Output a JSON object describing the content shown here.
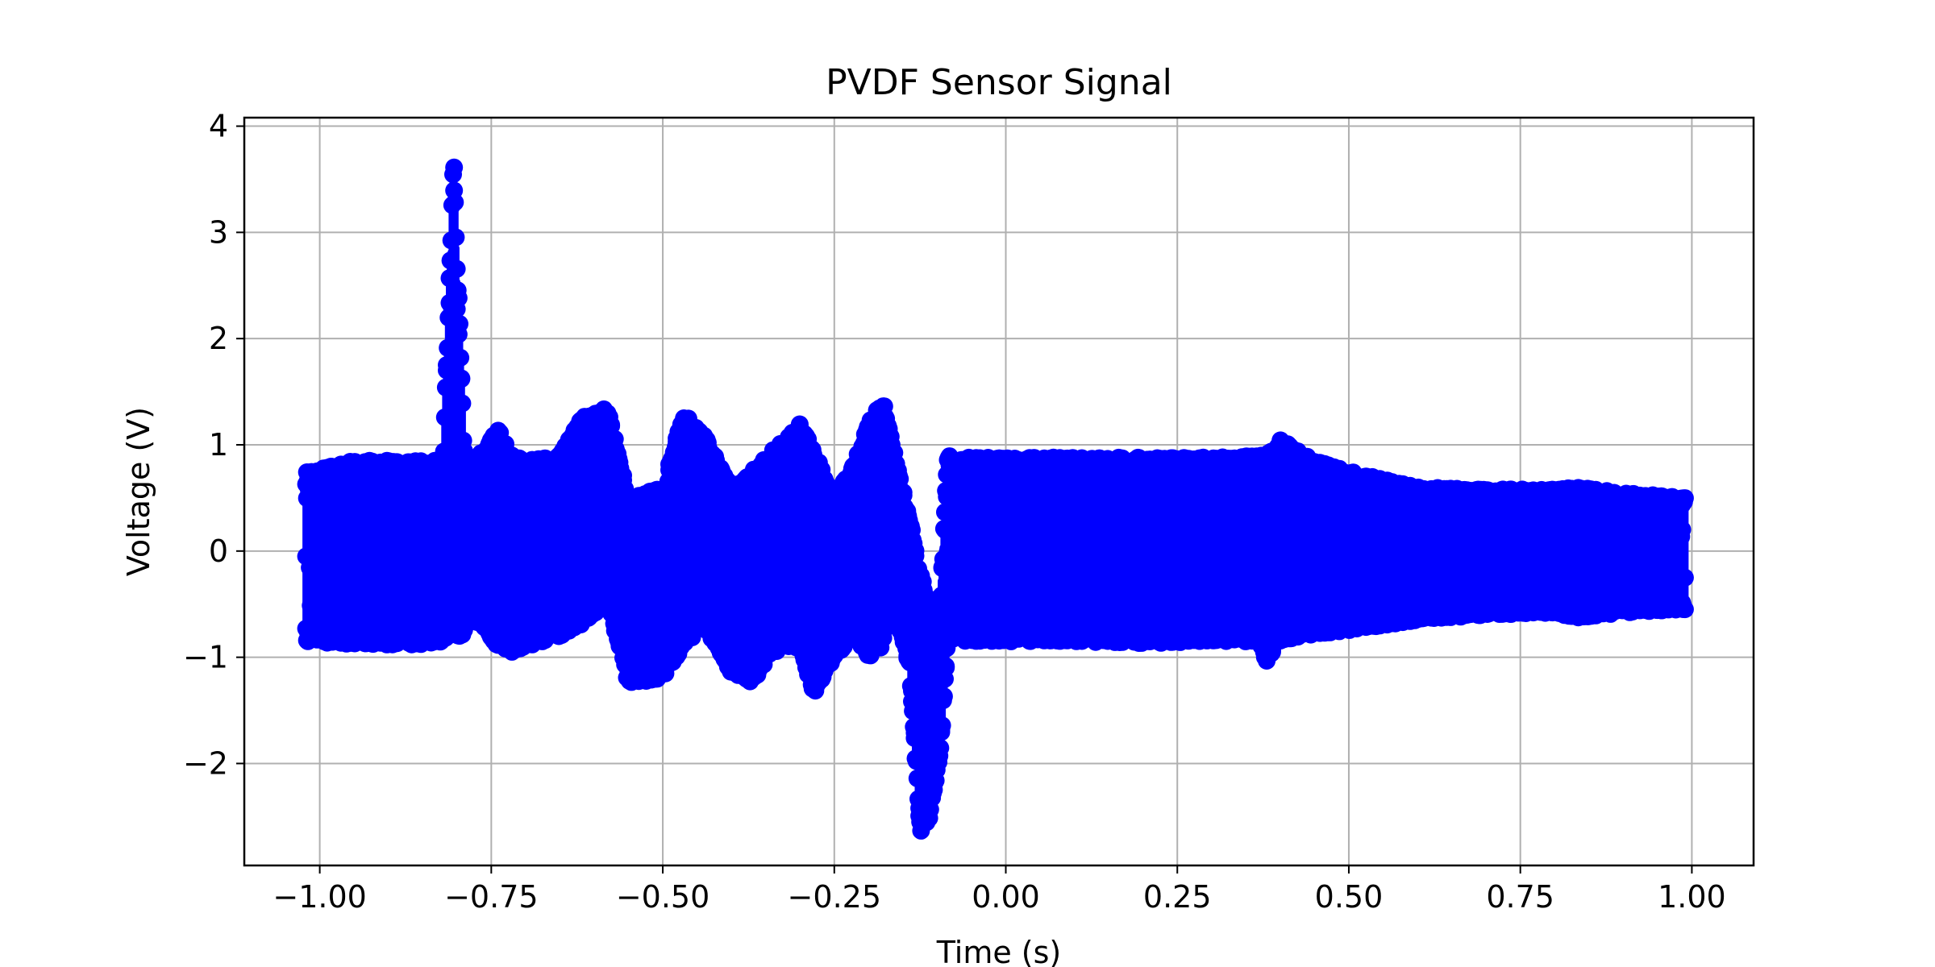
{
  "chart_data": {
    "type": "scatter",
    "title": "PVDF Sensor Signal",
    "xlabel": "Time (s)",
    "ylabel": "Voltage (V)",
    "xlim": [
      -1.11,
      1.09
    ],
    "ylim": [
      -2.96,
      4.08
    ],
    "xticks": [
      -1.0,
      -0.75,
      -0.5,
      -0.25,
      0.0,
      0.25,
      0.5,
      0.75,
      1.0
    ],
    "xtick_labels": [
      "−1.00",
      "−0.75",
      "−0.50",
      "−0.25",
      "0.00",
      "0.25",
      "0.50",
      "0.75",
      "1.00"
    ],
    "yticks": [
      -2,
      -1,
      0,
      1,
      2,
      3,
      4
    ],
    "ytick_labels": [
      "−2",
      "−1",
      "0",
      "1",
      "2",
      "3",
      "4"
    ],
    "grid": true,
    "legend": "none",
    "marker": "circle",
    "series": [
      {
        "color": "#0000ff",
        "x_range": [
          -1.02,
          0.99
        ],
        "sampling_note": "dense oscillating signal; envelope keypoints below",
        "envelope": {
          "t": [
            -1.02,
            -0.95,
            -0.85,
            -0.82,
            -0.805,
            -0.79,
            -0.78,
            -0.74,
            -0.72,
            -0.7,
            -0.65,
            -0.62,
            -0.58,
            -0.55,
            -0.5,
            -0.47,
            -0.44,
            -0.4,
            -0.37,
            -0.34,
            -0.3,
            -0.28,
            -0.25,
            -0.22,
            -0.2,
            -0.18,
            -0.165,
            -0.14,
            -0.125,
            -0.11,
            -0.095,
            -0.085,
            -0.06,
            0.0,
            0.1,
            0.2,
            0.3,
            0.37,
            0.38,
            0.4,
            0.45,
            0.5,
            0.6,
            0.7,
            0.8,
            0.83,
            0.9,
            0.99
          ],
          "upper": [
            0.75,
            0.85,
            0.85,
            0.85,
            3.75,
            1.0,
            0.8,
            1.15,
            0.9,
            0.85,
            0.9,
            1.25,
            1.35,
            0.5,
            0.6,
            1.3,
            1.1,
            0.6,
            0.75,
            0.95,
            1.2,
            0.95,
            0.5,
            0.85,
            1.2,
            1.45,
            1.0,
            0.3,
            -0.2,
            -0.5,
            -0.45,
            0.9,
            0.88,
            0.88,
            0.88,
            0.88,
            0.88,
            0.9,
            0.9,
            1.05,
            0.85,
            0.75,
            0.6,
            0.58,
            0.58,
            0.6,
            0.55,
            0.5
          ],
          "lower": [
            -0.85,
            -0.88,
            -0.88,
            -0.85,
            -0.8,
            -0.8,
            -0.6,
            -0.9,
            -0.95,
            -0.9,
            -0.8,
            -0.7,
            -0.5,
            -1.25,
            -1.2,
            -0.9,
            -0.7,
            -1.15,
            -1.25,
            -0.95,
            -0.9,
            -1.35,
            -1.0,
            -0.8,
            -1.0,
            -0.9,
            -0.5,
            -1.1,
            -2.65,
            -2.5,
            -1.9,
            -0.85,
            -0.85,
            -0.85,
            -0.85,
            -0.87,
            -0.85,
            -0.85,
            -1.05,
            -0.85,
            -0.78,
            -0.75,
            -0.65,
            -0.6,
            -0.58,
            -0.63,
            -0.58,
            -0.55
          ]
        }
      }
    ]
  }
}
